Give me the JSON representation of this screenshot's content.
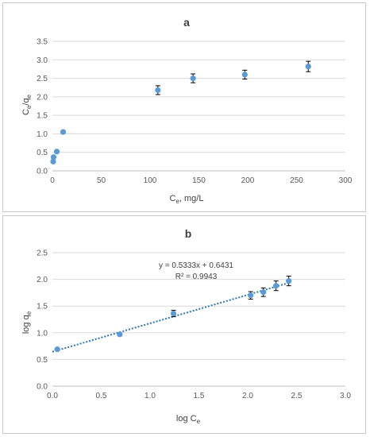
{
  "chart_data": [
    {
      "type": "scatter",
      "title": "a",
      "xlabel": "C",
      "xlabel_sub": "e",
      "xlabel_rest": ", mg/L",
      "ylabel": "C",
      "ylabel_sub1": "e",
      "ylabel_mid": "/q",
      "ylabel_sub2": "e",
      "xlim": [
        0,
        300
      ],
      "ylim": [
        0,
        3.5
      ],
      "xticks": [
        0,
        50,
        100,
        150,
        200,
        250,
        300
      ],
      "xtick_labels": [
        "0",
        "50",
        "100",
        "150",
        "200",
        "250",
        "300"
      ],
      "yticks": [
        0,
        0.5,
        1.0,
        1.5,
        2.0,
        2.5,
        3.0,
        3.5
      ],
      "ytick_labels": [
        "0.0",
        "0.5",
        "1.0",
        "1.5",
        "2.0",
        "2.5",
        "3.0",
        "3.5"
      ],
      "grid": "horizontal",
      "marker_color": "#5b9bd5",
      "series": [
        {
          "x": [
            0.8,
            1.2,
            4.5,
            11,
            108,
            144,
            197,
            262
          ],
          "y": [
            0.25,
            0.37,
            0.52,
            1.05,
            2.18,
            2.5,
            2.6,
            2.82
          ],
          "error": [
            0,
            0,
            0,
            0,
            0.12,
            0.12,
            0.12,
            0.14
          ]
        }
      ]
    },
    {
      "type": "scatter",
      "title": "b",
      "xlabel": "log C",
      "xlabel_sub": "e",
      "xlabel_rest": "",
      "ylabel": "log q",
      "ylabel_sub1": "e",
      "ylabel_mid": "",
      "ylabel_sub2": "",
      "xlim": [
        0,
        3.0
      ],
      "ylim": [
        0,
        2.5
      ],
      "xticks": [
        0,
        0.5,
        1.0,
        1.5,
        2.0,
        2.5,
        3.0
      ],
      "xtick_labels": [
        "0.0",
        "0.5",
        "1.0",
        "1.5",
        "2.0",
        "2.5",
        "3.0"
      ],
      "yticks": [
        0,
        0.5,
        1.0,
        1.5,
        2.0,
        2.5
      ],
      "ytick_labels": [
        "0.0",
        "0.5",
        "1.0",
        "1.5",
        "2.0",
        "2.5"
      ],
      "grid": "horizontal",
      "marker_color": "#5b9bd5",
      "equation": "y = 0.5333x + 0.6431",
      "r_squared": "R² = 0.9943",
      "trendline": {
        "slope": 0.5333,
        "intercept": 0.6431,
        "x_range": [
          0,
          2.42
        ]
      },
      "series": [
        {
          "x": [
            0.05,
            0.69,
            1.24,
            2.03,
            2.16,
            2.29,
            2.42
          ],
          "y": [
            0.69,
            0.97,
            1.36,
            1.7,
            1.76,
            1.88,
            1.97
          ],
          "error": [
            0,
            0,
            0.06,
            0.07,
            0.08,
            0.09,
            0.09
          ]
        }
      ]
    }
  ]
}
